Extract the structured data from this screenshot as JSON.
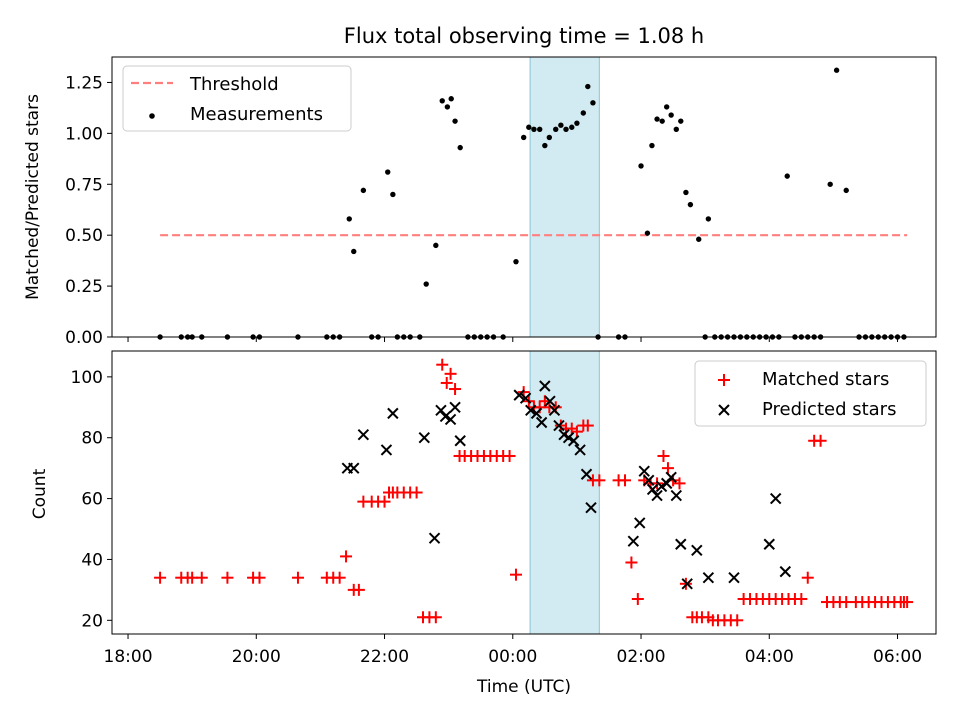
{
  "chart_data": [
    {
      "type": "scatter",
      "title": "Flux total observing time = 1.08 h",
      "ylabel": "Matched/Predicted stars",
      "xlabel": "",
      "ylim": [
        0,
        1.375
      ],
      "yticks": [
        "0.00",
        "0.25",
        "0.50",
        "0.75",
        "1.00",
        "1.25"
      ],
      "x_unit": "hours since 18:00 UTC",
      "highlight_span": {
        "from": 6.27,
        "to": 7.35,
        "color": "#add8e6"
      },
      "legend": {
        "position": "top-left",
        "entries": [
          "Threshold",
          "Measurements"
        ]
      },
      "series": [
        {
          "name": "Threshold",
          "kind": "line",
          "x": [
            0.5,
            12.15
          ],
          "y": [
            0.5,
            0.5
          ],
          "color": "#ff7f7f",
          "dash": true
        },
        {
          "name": "Measurements",
          "kind": "scatter",
          "color": "#000000",
          "points": [
            [
              0.5,
              0
            ],
            [
              0.83,
              0
            ],
            [
              0.93,
              0
            ],
            [
              1.0,
              0
            ],
            [
              1.15,
              0
            ],
            [
              1.55,
              0
            ],
            [
              1.95,
              0
            ],
            [
              2.05,
              0
            ],
            [
              2.65,
              0
            ],
            [
              3.1,
              0
            ],
            [
              3.2,
              0
            ],
            [
              3.3,
              0
            ],
            [
              3.45,
              0.58
            ],
            [
              3.52,
              0.42
            ],
            [
              3.67,
              0.72
            ],
            [
              3.8,
              0
            ],
            [
              3.9,
              0
            ],
            [
              4.05,
              0.81
            ],
            [
              4.13,
              0.7
            ],
            [
              4.2,
              0
            ],
            [
              4.3,
              0
            ],
            [
              4.4,
              0
            ],
            [
              4.55,
              0
            ],
            [
              4.65,
              0.26
            ],
            [
              4.8,
              0.45
            ],
            [
              4.9,
              1.16
            ],
            [
              4.98,
              1.13
            ],
            [
              5.04,
              1.17
            ],
            [
              5.1,
              1.06
            ],
            [
              5.18,
              0.93
            ],
            [
              5.3,
              0
            ],
            [
              5.4,
              0
            ],
            [
              5.5,
              0
            ],
            [
              5.6,
              0
            ],
            [
              5.7,
              0
            ],
            [
              5.85,
              0
            ],
            [
              6.05,
              0.37
            ],
            [
              6.17,
              0.98
            ],
            [
              6.25,
              1.03
            ],
            [
              6.33,
              1.02
            ],
            [
              6.42,
              1.02
            ],
            [
              6.5,
              0.94
            ],
            [
              6.57,
              0.98
            ],
            [
              6.67,
              1.02
            ],
            [
              6.75,
              1.04
            ],
            [
              6.83,
              1.02
            ],
            [
              6.92,
              1.03
            ],
            [
              7.0,
              1.05
            ],
            [
              7.1,
              1.1
            ],
            [
              7.17,
              1.23
            ],
            [
              7.25,
              1.15
            ],
            [
              7.33,
              0
            ],
            [
              7.65,
              0
            ],
            [
              7.75,
              0
            ],
            [
              8.0,
              0.84
            ],
            [
              8.1,
              0.51
            ],
            [
              8.17,
              0.94
            ],
            [
              8.25,
              1.07
            ],
            [
              8.33,
              1.06
            ],
            [
              8.4,
              1.13
            ],
            [
              8.47,
              1.09
            ],
            [
              8.55,
              1.02
            ],
            [
              8.62,
              1.06
            ],
            [
              8.7,
              0.71
            ],
            [
              8.77,
              0.65
            ],
            [
              8.9,
              0.48
            ],
            [
              9.0,
              0
            ],
            [
              9.05,
              0.58
            ],
            [
              9.15,
              0
            ],
            [
              9.25,
              0
            ],
            [
              9.35,
              0
            ],
            [
              9.45,
              0
            ],
            [
              9.55,
              0
            ],
            [
              9.65,
              0
            ],
            [
              9.75,
              0
            ],
            [
              9.85,
              0
            ],
            [
              9.95,
              0
            ],
            [
              10.05,
              0
            ],
            [
              10.15,
              0
            ],
            [
              10.28,
              0.79
            ],
            [
              10.4,
              0
            ],
            [
              10.5,
              0
            ],
            [
              10.6,
              0
            ],
            [
              10.7,
              0
            ],
            [
              10.8,
              0
            ],
            [
              10.95,
              0.75
            ],
            [
              11.05,
              1.31
            ],
            [
              11.2,
              0.72
            ],
            [
              11.4,
              0
            ],
            [
              11.5,
              0
            ],
            [
              11.6,
              0
            ],
            [
              11.7,
              0
            ],
            [
              11.8,
              0
            ],
            [
              11.9,
              0
            ],
            [
              12.0,
              0
            ],
            [
              12.1,
              0
            ]
          ]
        }
      ]
    },
    {
      "type": "scatter",
      "title": "",
      "ylabel": "Count",
      "xlabel": "Time (UTC)",
      "ylim": [
        15.5,
        108.5
      ],
      "yticks": [
        "20",
        "40",
        "60",
        "80",
        "100"
      ],
      "xticks": [
        "18:00",
        "20:00",
        "22:00",
        "00:00",
        "02:00",
        "04:00",
        "06:00"
      ],
      "xlim": [
        -0.25,
        12.6
      ],
      "highlight_span": {
        "from": 6.27,
        "to": 7.35,
        "color": "#add8e6"
      },
      "legend": {
        "position": "top-right",
        "entries": [
          "Matched stars",
          "Predicted stars"
        ]
      },
      "series": [
        {
          "name": "Matched stars",
          "kind": "plus",
          "color": "#ff0000",
          "points": [
            [
              0.5,
              34
            ],
            [
              0.83,
              34
            ],
            [
              0.93,
              34
            ],
            [
              1.0,
              34
            ],
            [
              1.15,
              34
            ],
            [
              1.55,
              34
            ],
            [
              1.95,
              34
            ],
            [
              2.05,
              34
            ],
            [
              2.65,
              34
            ],
            [
              3.1,
              34
            ],
            [
              3.2,
              34
            ],
            [
              3.3,
              34
            ],
            [
              3.4,
              41
            ],
            [
              3.52,
              30
            ],
            [
              3.6,
              30
            ],
            [
              3.67,
              59
            ],
            [
              3.8,
              59
            ],
            [
              3.9,
              59
            ],
            [
              4.0,
              59
            ],
            [
              4.07,
              62
            ],
            [
              4.13,
              62
            ],
            [
              4.2,
              62
            ],
            [
              4.3,
              62
            ],
            [
              4.4,
              62
            ],
            [
              4.5,
              62
            ],
            [
              4.6,
              21
            ],
            [
              4.7,
              21
            ],
            [
              4.8,
              21
            ],
            [
              4.9,
              104
            ],
            [
              4.97,
              98
            ],
            [
              5.03,
              101
            ],
            [
              5.1,
              96
            ],
            [
              5.17,
              74
            ],
            [
              5.25,
              74
            ],
            [
              5.35,
              74
            ],
            [
              5.45,
              74
            ],
            [
              5.55,
              74
            ],
            [
              5.65,
              74
            ],
            [
              5.75,
              74
            ],
            [
              5.85,
              74
            ],
            [
              5.95,
              74
            ],
            [
              6.05,
              35
            ],
            [
              6.17,
              95
            ],
            [
              6.25,
              92
            ],
            [
              6.33,
              90
            ],
            [
              6.42,
              90
            ],
            [
              6.5,
              92
            ],
            [
              6.57,
              90
            ],
            [
              6.67,
              90
            ],
            [
              6.75,
              84
            ],
            [
              6.83,
              83
            ],
            [
              6.92,
              83
            ],
            [
              7.0,
              82
            ],
            [
              7.1,
              84
            ],
            [
              7.17,
              84
            ],
            [
              7.25,
              66
            ],
            [
              7.35,
              66
            ],
            [
              7.65,
              66
            ],
            [
              7.75,
              66
            ],
            [
              7.85,
              39
            ],
            [
              7.95,
              27
            ],
            [
              8.05,
              66
            ],
            [
              8.15,
              65
            ],
            [
              8.25,
              65
            ],
            [
              8.35,
              74
            ],
            [
              8.42,
              70
            ],
            [
              8.5,
              66
            ],
            [
              8.6,
              65
            ],
            [
              8.7,
              32
            ],
            [
              8.8,
              21
            ],
            [
              8.87,
              21
            ],
            [
              8.95,
              21
            ],
            [
              9.05,
              21
            ],
            [
              9.12,
              20
            ],
            [
              9.2,
              20
            ],
            [
              9.3,
              20
            ],
            [
              9.4,
              20
            ],
            [
              9.5,
              20
            ],
            [
              9.6,
              27
            ],
            [
              9.7,
              27
            ],
            [
              9.8,
              27
            ],
            [
              9.9,
              27
            ],
            [
              10.0,
              27
            ],
            [
              10.1,
              27
            ],
            [
              10.2,
              27
            ],
            [
              10.3,
              27
            ],
            [
              10.4,
              27
            ],
            [
              10.5,
              27
            ],
            [
              10.6,
              34
            ],
            [
              10.7,
              79
            ],
            [
              10.8,
              79
            ],
            [
              10.9,
              26
            ],
            [
              11.0,
              26
            ],
            [
              11.1,
              26
            ],
            [
              11.2,
              26
            ],
            [
              11.35,
              26
            ],
            [
              11.45,
              26
            ],
            [
              11.55,
              26
            ],
            [
              11.65,
              26
            ],
            [
              11.75,
              26
            ],
            [
              11.85,
              26
            ],
            [
              11.95,
              26
            ],
            [
              12.05,
              26
            ],
            [
              12.1,
              26
            ],
            [
              12.15,
              26
            ]
          ]
        },
        {
          "name": "Predicted stars",
          "kind": "x",
          "color": "#000000",
          "points": [
            [
              3.42,
              70
            ],
            [
              3.52,
              70
            ],
            [
              3.67,
              81
            ],
            [
              4.03,
              76
            ],
            [
              4.13,
              88
            ],
            [
              4.62,
              80
            ],
            [
              4.78,
              47
            ],
            [
              4.88,
              89
            ],
            [
              4.95,
              87
            ],
            [
              5.03,
              86
            ],
            [
              5.1,
              90
            ],
            [
              5.18,
              79
            ],
            [
              6.1,
              94
            ],
            [
              6.2,
              93
            ],
            [
              6.28,
              89
            ],
            [
              6.37,
              88
            ],
            [
              6.45,
              85
            ],
            [
              6.5,
              97
            ],
            [
              6.58,
              92
            ],
            [
              6.65,
              89
            ],
            [
              6.72,
              84
            ],
            [
              6.8,
              81
            ],
            [
              6.87,
              80
            ],
            [
              6.95,
              79
            ],
            [
              7.05,
              76
            ],
            [
              7.15,
              68
            ],
            [
              7.22,
              57
            ],
            [
              7.88,
              46
            ],
            [
              7.98,
              52
            ],
            [
              8.05,
              69
            ],
            [
              8.12,
              66
            ],
            [
              8.18,
              63
            ],
            [
              8.25,
              61
            ],
            [
              8.32,
              64
            ],
            [
              8.4,
              65
            ],
            [
              8.47,
              67
            ],
            [
              8.55,
              61
            ],
            [
              8.62,
              45
            ],
            [
              8.72,
              32
            ],
            [
              8.87,
              43
            ],
            [
              9.05,
              34
            ],
            [
              9.45,
              34
            ],
            [
              10.0,
              45
            ],
            [
              10.1,
              60
            ],
            [
              10.25,
              36
            ]
          ]
        }
      ]
    }
  ]
}
